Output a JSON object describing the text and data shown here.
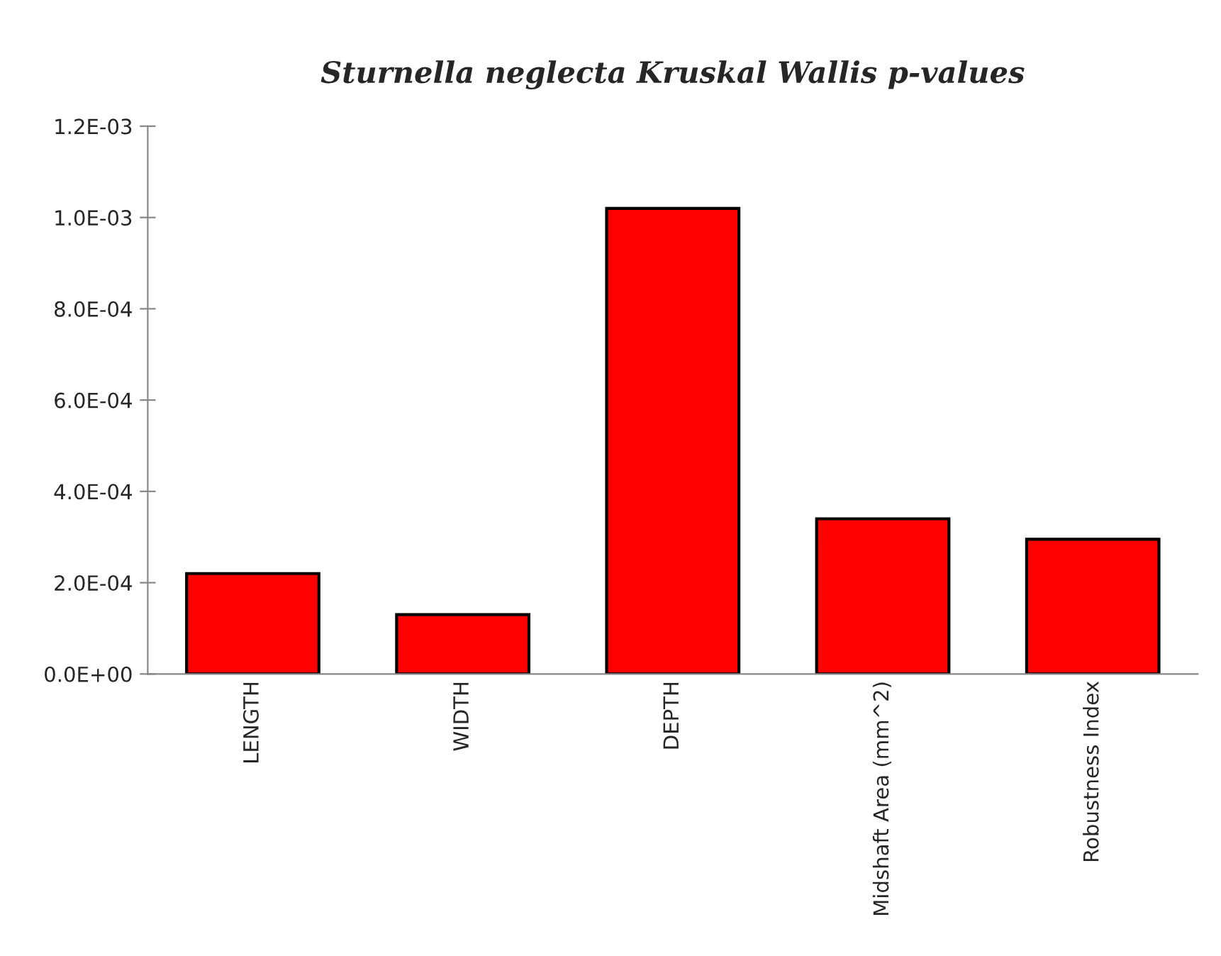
{
  "chart_data": {
    "type": "bar",
    "title": "Sturnella neglecta Kruskal Wallis p-values",
    "categories": [
      "LENGTH",
      "WIDTH",
      "DEPTH",
      "Midshaft Area (mm^2)",
      "Robustness Index"
    ],
    "values": [
      0.00022,
      0.00013,
      0.00102,
      0.00034,
      0.000295
    ],
    "color": "#ff0000",
    "ylim": [
      0,
      0.0012
    ],
    "yticks": [
      {
        "value": 0,
        "label": "0.0E+00"
      },
      {
        "value": 0.0002,
        "label": "2.0E-04"
      },
      {
        "value": 0.0004,
        "label": "4.0E-04"
      },
      {
        "value": 0.0006,
        "label": "6.0E-04"
      },
      {
        "value": 0.0008,
        "label": "8.0E-04"
      },
      {
        "value": 0.001,
        "label": "1.0E-03"
      },
      {
        "value": 0.0012,
        "label": "1.2E-03"
      }
    ],
    "grid": false
  }
}
